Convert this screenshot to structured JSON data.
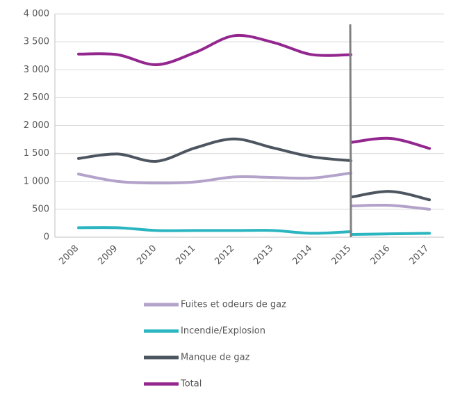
{
  "chart_data": {
    "type": "line",
    "categories": [
      "2008",
      "2009",
      "2010",
      "2011",
      "2012",
      "2013",
      "2014",
      "2015",
      "2016",
      "2017"
    ],
    "series": [
      {
        "name": "Fuites et odeurs de gaz",
        "color": "#b3a2c9",
        "values": [
          1130,
          1000,
          970,
          990,
          1080,
          1070,
          1060,
          1150,
          null,
          null
        ],
        "values_after": [
          null,
          null,
          null,
          null,
          null,
          null,
          null,
          560,
          570,
          500
        ]
      },
      {
        "name": "Incendie/Explosion",
        "color": "#2bb5c0",
        "values": [
          170,
          170,
          120,
          120,
          120,
          120,
          70,
          100,
          null,
          null
        ],
        "values_after": [
          null,
          null,
          null,
          null,
          null,
          null,
          null,
          50,
          60,
          70
        ]
      },
      {
        "name": "Manque de gaz",
        "color": "#4d5660",
        "values": [
          1410,
          1490,
          1360,
          1600,
          1760,
          1600,
          1440,
          1370,
          null,
          null
        ],
        "values_after": [
          null,
          null,
          null,
          null,
          null,
          null,
          null,
          720,
          820,
          670
        ]
      },
      {
        "name": "Total",
        "color": "#93278f",
        "values": [
          3280,
          3270,
          3090,
          3310,
          3610,
          3490,
          3270,
          3270,
          null,
          null
        ],
        "values_after": [
          null,
          null,
          null,
          null,
          null,
          null,
          null,
          1700,
          1770,
          1590
        ]
      }
    ],
    "ylim": [
      0,
      4000
    ],
    "yticks": [
      0,
      500,
      {
        "value": 1000,
        "label": "1 000"
      },
      {
        "value": 1500,
        "label": "1 500"
      },
      {
        "value": 2000,
        "label": "2 000"
      },
      {
        "value": 2500,
        "label": "2 500"
      },
      {
        "value": 3000,
        "label": "3 000"
      },
      {
        "value": 3500,
        "label": "3 500"
      },
      {
        "value": 4000,
        "label": "4 000"
      }
    ],
    "grid": true
  }
}
